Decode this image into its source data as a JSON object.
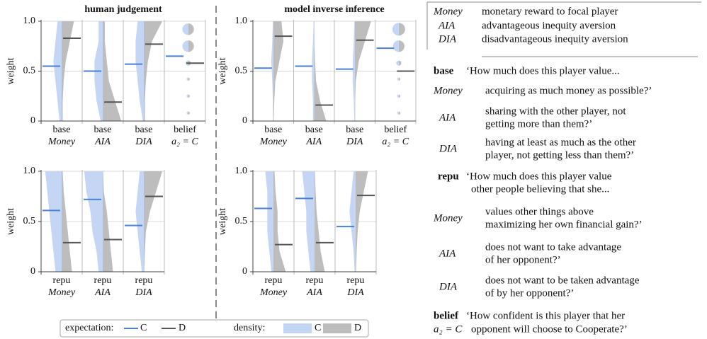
{
  "chart_data": [
    {
      "type": "violin",
      "title": "human  judgement",
      "ylabel": "weight",
      "ylim": [
        0,
        1
      ],
      "yticks": [
        0,
        0.5,
        {
          "value": 1,
          "label": "1.0"
        }
      ],
      "grid": true,
      "density_y": [
        0,
        0.2,
        0.4,
        0.6,
        0.8,
        1
      ],
      "columns": [
        {
          "label1": "base",
          "label2": "Money",
          "expect_c": 0.55,
          "expect_d": 0.83,
          "density_c": [
            0.1,
            0.2,
            0.3,
            0.4,
            0.3,
            0.2
          ],
          "density_d": [
            0.05,
            0.05,
            0.1,
            0.2,
            0.4,
            0.6
          ]
        },
        {
          "label1": "base",
          "label2": "AIA",
          "expect_c": 0.5,
          "expect_d": 0.19,
          "density_c": [
            0.1,
            0.3,
            0.4,
            0.4,
            0.2,
            0.2
          ],
          "density_d": [
            0.9,
            0.6,
            0.3,
            0.2,
            0.1,
            0.1
          ]
        },
        {
          "label1": "base",
          "label2": "DIA",
          "expect_c": 0.57,
          "expect_d": 0.77,
          "density_c": [
            0.05,
            0.2,
            0.3,
            0.4,
            0.4,
            0.3
          ],
          "density_d": [
            0.05,
            0.05,
            0.1,
            0.2,
            0.4,
            0.9
          ]
        },
        {
          "label1": "belief",
          "label2": "a₂ = C",
          "expect_c": 0.65,
          "expect_d": 0.58,
          "dots_y": [
            0.92,
            0.75,
            0.58,
            0.42,
            0.25,
            0.08
          ],
          "dots_size": [
            0.9,
            0.9,
            0.4,
            0.25,
            0.25,
            0.25
          ]
        }
      ]
    },
    {
      "type": "violin",
      "title": "model inverse inference",
      "ylabel": "weight",
      "ylim": [
        0,
        1
      ],
      "yticks": [
        0,
        0.5,
        {
          "value": 1,
          "label": "1.0"
        }
      ],
      "grid": true,
      "density_y": [
        0,
        0.2,
        0.4,
        0.6,
        0.8,
        1
      ],
      "columns": [
        {
          "label1": "base",
          "label2": "Money",
          "expect_c": 0.53,
          "expect_d": 0.85,
          "density_c": [
            0.02,
            0.02,
            0.05,
            0.1,
            0.05,
            0.02
          ],
          "density_d": [
            0.02,
            0.05,
            0.1,
            0.3,
            0.5,
            0.4
          ]
        },
        {
          "label1": "base",
          "label2": "AIA",
          "expect_c": 0.55,
          "expect_d": 0.16,
          "density_c": [
            0.05,
            0.05,
            0.1,
            0.1,
            0.05,
            0.02
          ],
          "density_d": [
            0.6,
            0.3,
            0.1,
            0.05,
            0.02,
            0.02
          ]
        },
        {
          "label1": "base",
          "label2": "DIA",
          "expect_c": 0.52,
          "expect_d": 0.81,
          "density_c": [
            0.02,
            0.05,
            0.1,
            0.1,
            0.05,
            0.02
          ],
          "density_d": [
            0.02,
            0.02,
            0.05,
            0.2,
            0.5,
            0.8
          ]
        },
        {
          "label1": "belief",
          "label2": "a₂ = C",
          "expect_c": 0.73,
          "expect_d": 0.5,
          "dots_y": [
            0.92,
            0.75,
            0.58,
            0.42,
            0.25,
            0.08
          ],
          "dots_size": [
            1,
            0.9,
            0.4,
            0.25,
            0.25,
            0.25
          ]
        }
      ]
    },
    {
      "type": "violin",
      "ylabel": "weight",
      "ylim": [
        0,
        1
      ],
      "yticks": [
        0,
        0.5,
        {
          "value": 1,
          "label": "1.0"
        }
      ],
      "grid": true,
      "density_y": [
        0,
        0.2,
        0.4,
        0.6,
        0.8,
        1
      ],
      "columns": [
        {
          "label1": "repu",
          "label2": "Money",
          "expect_c": 0.61,
          "expect_d": 0.29,
          "density_c": [
            0.3,
            0.4,
            0.5,
            0.6,
            0.7,
            0.8
          ],
          "density_d": [
            0.5,
            0.4,
            0.3,
            0.2,
            0.1,
            0.05
          ]
        },
        {
          "label1": "repu",
          "label2": "AIA",
          "expect_c": 0.72,
          "expect_d": 0.32,
          "density_c": [
            0.2,
            0.3,
            0.5,
            0.6,
            0.8,
            0.9
          ],
          "density_d": [
            0.5,
            0.4,
            0.3,
            0.2,
            0.05,
            0.02
          ]
        },
        {
          "label1": "repu",
          "label2": "DIA",
          "expect_c": 0.46,
          "expect_d": 0.75,
          "density_c": [
            0.1,
            0.2,
            0.3,
            0.4,
            0.3,
            0.2
          ],
          "density_d": [
            0.02,
            0.05,
            0.1,
            0.3,
            0.6,
            0.9
          ]
        }
      ]
    },
    {
      "type": "violin",
      "ylabel": "weight",
      "ylim": [
        0,
        1
      ],
      "yticks": [
        0,
        0.5,
        {
          "value": 1,
          "label": "1.0"
        }
      ],
      "grid": true,
      "density_y": [
        0,
        0.2,
        0.4,
        0.6,
        0.8,
        1
      ],
      "columns": [
        {
          "label1": "repu",
          "label2": "Money",
          "expect_c": 0.63,
          "expect_d": 0.27,
          "density_c": [
            0.1,
            0.2,
            0.3,
            0.3,
            0.3,
            0.4
          ],
          "density_d": [
            0.6,
            0.3,
            0.2,
            0.2,
            0.1,
            0.05
          ]
        },
        {
          "label1": "repu",
          "label2": "AIA",
          "expect_c": 0.73,
          "expect_d": 0.29,
          "density_c": [
            0.2,
            0.3,
            0.4,
            0.4,
            0.5,
            0.6
          ],
          "density_d": [
            0.5,
            0.3,
            0.2,
            0.1,
            0.05,
            0.02
          ]
        },
        {
          "label1": "repu",
          "label2": "DIA",
          "expect_c": 0.45,
          "expect_d": 0.76,
          "density_c": [
            0.05,
            0.1,
            0.2,
            0.3,
            0.2,
            0.1
          ],
          "density_d": [
            0.02,
            0.05,
            0.1,
            0.2,
            0.4,
            0.6
          ]
        }
      ]
    }
  ],
  "legend": {
    "expectation": "expectation:",
    "density": "density:",
    "c": "C",
    "d": "D",
    "c_line": "#4a7fd6",
    "d_line": "#555555",
    "c_fill": "#c5d6f4",
    "d_fill": "#bdbdbd"
  },
  "glossary": {
    "definitions": [
      {
        "term": "Money",
        "text": "monetary reward to focal player"
      },
      {
        "term": "AIA",
        "text": "advantageous inequity aversion"
      },
      {
        "term": "DIA",
        "text": "disadvantageous inequity aversion"
      }
    ],
    "sections": [
      {
        "key": "base",
        "quote": [
          "‘How much does this player value..."
        ],
        "items": [
          {
            "term": "Money",
            "lines": [
              "acquiring as much money as possible?’"
            ]
          },
          {
            "term": "AIA",
            "lines": [
              "sharing with the other player, not",
              "getting more than them?’"
            ]
          },
          {
            "term": "DIA",
            "lines": [
              "having at least as much as the other",
              "player, not getting less than them?’"
            ]
          }
        ]
      },
      {
        "key": "repu",
        "quote": [
          "‘How much does this player value",
          "other people believing that she..."
        ],
        "items": [
          {
            "term": "Money",
            "lines": [
              "values other things above",
              "maximizing her own financial gain?’"
            ]
          },
          {
            "term": "AIA",
            "lines": [
              "does not want to take advantage",
              "of her opponent?’"
            ]
          },
          {
            "term": "DIA",
            "lines": [
              "does not want to be taken advantage",
              "of by her opponent?’"
            ]
          }
        ]
      },
      {
        "key": "belief",
        "term": "a₂ = C",
        "quote": [
          "‘How confident is this player that her",
          "opponent will choose to Cooperate?’"
        ]
      }
    ]
  }
}
